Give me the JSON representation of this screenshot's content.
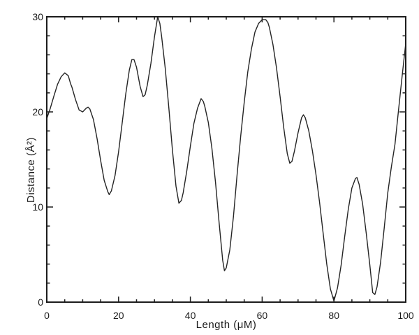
{
  "figure": {
    "background": "#ffffff",
    "axis_color": "#1c1c1c",
    "line_color": "#242424",
    "text_color": "#1a1a1a"
  },
  "chart_data": {
    "type": "line",
    "title": "",
    "xlabel": "Length (μM)",
    "ylabel": "Distance (Å²)",
    "xlim": [
      0,
      100
    ],
    "ylim": [
      0,
      30
    ],
    "x_major_ticks": [
      0,
      20,
      40,
      60,
      80,
      100
    ],
    "x_minor_step": 5,
    "y_major_ticks": [
      0,
      10,
      20,
      30
    ],
    "y_minor_step": 2,
    "grid": false,
    "legend": false,
    "frame": "box-with-inward-ticks",
    "series": [
      {
        "name": "distance-profile",
        "color": "#242424",
        "points": [
          [
            0,
            19.3
          ],
          [
            1,
            20.4
          ],
          [
            2,
            21.7
          ],
          [
            3,
            22.9
          ],
          [
            4,
            23.7
          ],
          [
            5,
            24.1
          ],
          [
            6,
            23.8
          ],
          [
            6.6,
            23.0
          ],
          [
            7,
            22.6
          ],
          [
            8,
            21.3
          ],
          [
            9,
            20.2
          ],
          [
            10,
            20.0
          ],
          [
            11,
            20.4
          ],
          [
            11.5,
            20.5
          ],
          [
            12,
            20.3
          ],
          [
            13,
            19.2
          ],
          [
            14,
            17.2
          ],
          [
            15,
            14.9
          ],
          [
            16,
            12.8
          ],
          [
            17,
            11.6
          ],
          [
            17.4,
            11.3
          ],
          [
            18,
            11.7
          ],
          [
            19,
            13.3
          ],
          [
            20,
            15.8
          ],
          [
            21,
            18.8
          ],
          [
            22,
            21.9
          ],
          [
            23,
            24.4
          ],
          [
            23.7,
            25.5
          ],
          [
            24.3,
            25.5
          ],
          [
            25,
            24.7
          ],
          [
            26,
            22.7
          ],
          [
            26.8,
            21.6
          ],
          [
            27.4,
            21.8
          ],
          [
            28,
            22.8
          ],
          [
            29,
            25.1
          ],
          [
            30,
            27.9
          ],
          [
            30.9,
            30.0
          ],
          [
            31.5,
            29.3
          ],
          [
            32,
            27.9
          ],
          [
            33,
            24.6
          ],
          [
            34,
            20.4
          ],
          [
            35,
            16.0
          ],
          [
            36,
            12.2
          ],
          [
            36.8,
            10.4
          ],
          [
            37.5,
            10.7
          ],
          [
            38,
            11.5
          ],
          [
            39,
            13.8
          ],
          [
            40,
            16.4
          ],
          [
            41,
            18.8
          ],
          [
            42,
            20.4
          ],
          [
            43,
            21.4
          ],
          [
            43.6,
            21.1
          ],
          [
            44,
            20.6
          ],
          [
            45,
            18.9
          ],
          [
            46,
            16.2
          ],
          [
            47,
            12.6
          ],
          [
            48,
            8.4
          ],
          [
            49,
            4.4
          ],
          [
            49.5,
            3.3
          ],
          [
            50,
            3.6
          ],
          [
            51,
            5.5
          ],
          [
            52,
            9.0
          ],
          [
            53,
            13.3
          ],
          [
            54,
            17.4
          ],
          [
            55,
            21.0
          ],
          [
            56,
            24.2
          ],
          [
            57,
            26.6
          ],
          [
            58,
            28.4
          ],
          [
            59,
            29.3
          ],
          [
            60,
            29.7
          ],
          [
            61,
            29.7
          ],
          [
            61.6,
            29.4
          ],
          [
            62,
            28.9
          ],
          [
            63,
            27.1
          ],
          [
            64,
            24.6
          ],
          [
            65,
            21.6
          ],
          [
            66,
            18.4
          ],
          [
            67,
            15.6
          ],
          [
            67.7,
            14.6
          ],
          [
            68.3,
            14.8
          ],
          [
            69,
            15.9
          ],
          [
            70,
            17.8
          ],
          [
            71,
            19.4
          ],
          [
            71.5,
            19.7
          ],
          [
            72,
            19.4
          ],
          [
            73,
            18.0
          ],
          [
            74,
            15.9
          ],
          [
            75,
            13.4
          ],
          [
            76,
            10.5
          ],
          [
            77,
            7.2
          ],
          [
            78,
            4.0
          ],
          [
            79,
            1.4
          ],
          [
            80,
            0.1
          ],
          [
            81,
            1.5
          ],
          [
            82,
            3.9
          ],
          [
            83,
            6.9
          ],
          [
            84,
            9.8
          ],
          [
            85,
            12.0
          ],
          [
            86,
            13.0
          ],
          [
            86.4,
            13.1
          ],
          [
            87,
            12.4
          ],
          [
            88,
            10.3
          ],
          [
            89,
            7.2
          ],
          [
            90,
            3.9
          ],
          [
            90.8,
            1.0
          ],
          [
            91.4,
            0.8
          ],
          [
            92,
            1.6
          ],
          [
            93,
            4.2
          ],
          [
            94,
            7.8
          ],
          [
            95,
            11.5
          ],
          [
            96,
            14.2
          ],
          [
            97,
            16.6
          ],
          [
            98,
            20.2
          ],
          [
            99,
            23.8
          ],
          [
            100,
            27.2
          ]
        ]
      }
    ]
  }
}
